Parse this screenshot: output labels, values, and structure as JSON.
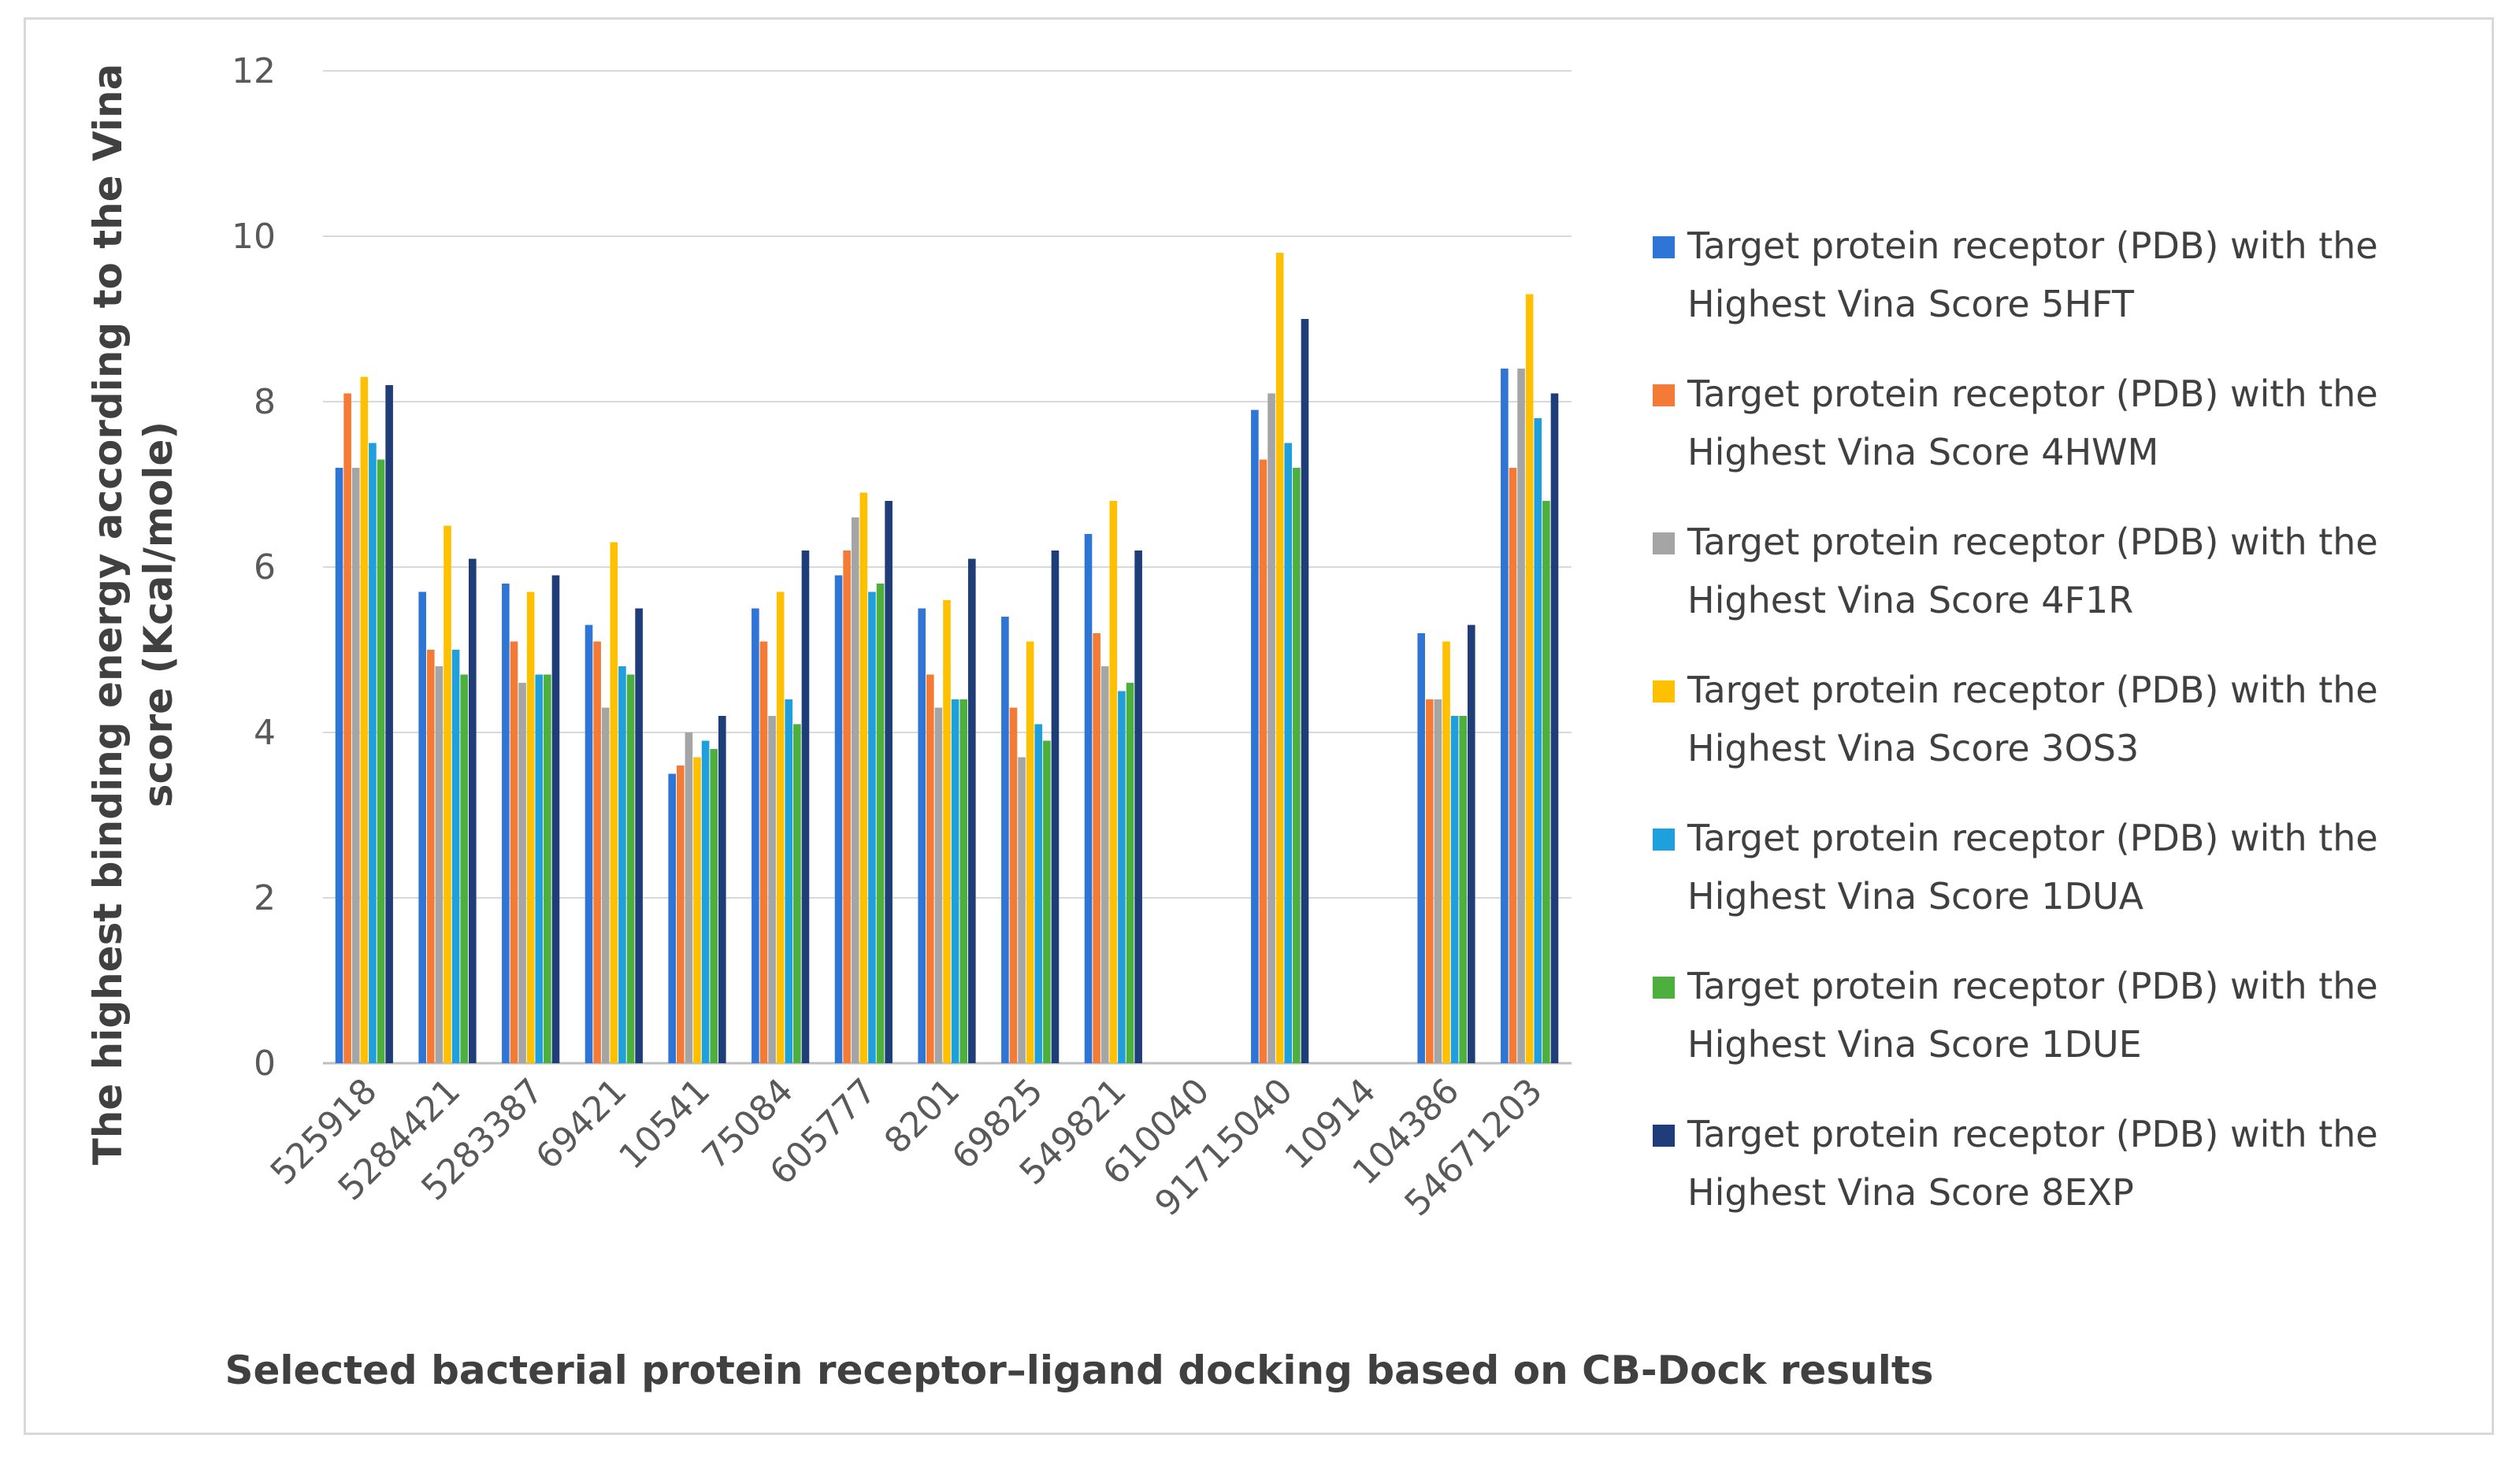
{
  "chart_data": {
    "type": "bar",
    "title": "",
    "xlabel": "Selected bacterial protein receptor–ligand docking based on CB-Dock results",
    "ylabel_lines": [
      "The highest binding energy according to the Vina",
      "score (Kcal/mole)"
    ],
    "ylim": [
      0,
      12
    ],
    "yticks": [
      "0",
      "2",
      "4",
      "6",
      "8",
      "10",
      "12"
    ],
    "grid": true,
    "legend_position": "right",
    "categories": [
      "525918",
      "5284421",
      "5283387",
      "69421",
      "10541",
      "75084",
      "605777",
      "8201",
      "69825",
      "549821",
      "610040",
      "91715040",
      "10914",
      "104386",
      "54671203"
    ],
    "series": [
      {
        "name_line1": "Target protein receptor (PDB) with the",
        "name_line2": "Highest Vina Score 5HFT",
        "color": "#2e75d6",
        "values": [
          7.2,
          5.7,
          5.8,
          5.3,
          3.5,
          5.5,
          5.9,
          5.5,
          5.4,
          6.4,
          0,
          7.9,
          0,
          5.2,
          8.4
        ]
      },
      {
        "name_line1": "Target protein receptor (PDB) with the",
        "name_line2": "Highest Vina Score 4HWM",
        "color": "#f37b36",
        "values": [
          8.1,
          5.0,
          5.1,
          5.1,
          3.6,
          5.1,
          6.2,
          4.7,
          4.3,
          5.2,
          0,
          7.3,
          0,
          4.4,
          7.2
        ]
      },
      {
        "name_line1": "Target protein receptor (PDB) with the",
        "name_line2": "Highest Vina Score 4F1R",
        "color": "#a5a5a5",
        "values": [
          7.2,
          4.8,
          4.6,
          4.3,
          4.0,
          4.2,
          6.6,
          4.3,
          3.7,
          4.8,
          0,
          8.1,
          0,
          4.4,
          8.4
        ]
      },
      {
        "name_line1": "Target protein receptor (PDB) with the",
        "name_line2": "Highest Vina Score 3OS3",
        "color": "#ffc000",
        "values": [
          8.3,
          6.5,
          5.7,
          6.3,
          3.7,
          5.7,
          6.9,
          5.6,
          5.1,
          6.8,
          0,
          9.8,
          0,
          5.1,
          9.3
        ]
      },
      {
        "name_line1": "Target protein receptor (PDB) with the",
        "name_line2": "Highest Vina Score 1DUA",
        "color": "#1fa0dc",
        "values": [
          7.5,
          5.0,
          4.7,
          4.8,
          3.9,
          4.4,
          5.7,
          4.4,
          4.1,
          4.5,
          0,
          7.5,
          0,
          4.2,
          7.8
        ]
      },
      {
        "name_line1": "Target protein receptor (PDB) with the",
        "name_line2": "Highest Vina Score 1DUE",
        "color": "#4caf3e",
        "values": [
          7.3,
          4.7,
          4.7,
          4.7,
          3.8,
          4.1,
          5.8,
          4.4,
          3.9,
          4.6,
          0,
          7.2,
          0,
          4.2,
          6.8
        ]
      },
      {
        "name_line1": "Target protein receptor (PDB) with the",
        "name_line2": "Highest Vina Score 8EXP",
        "color": "#1f3d78",
        "values": [
          8.2,
          6.1,
          5.9,
          5.5,
          4.2,
          6.2,
          6.8,
          6.1,
          6.2,
          6.2,
          0,
          9.0,
          0,
          5.3,
          8.1
        ]
      }
    ]
  },
  "style": {
    "gridline_color": "#d9d9d9",
    "axis_color": "#bfbfbf"
  }
}
